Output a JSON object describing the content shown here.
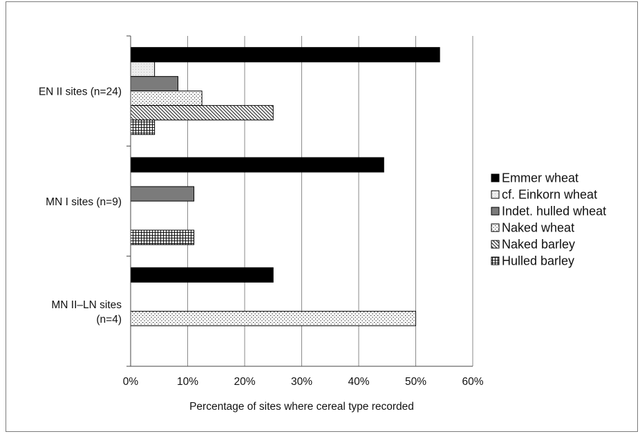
{
  "chart_data": {
    "type": "bar",
    "orientation": "horizontal",
    "categories": [
      "EN II sites (n=24)",
      "MN I sites (n=9)",
      "MN II–LN sites (n=4)"
    ],
    "category_lines": [
      [
        "EN II sites (n=24)"
      ],
      [
        "MN I sites (n=9)"
      ],
      [
        "MN II–LN sites",
        "(n=4)"
      ]
    ],
    "series": [
      {
        "name": "Emmer wheat",
        "values": [
          54.2,
          44.4,
          25.0
        ],
        "pattern": "solid"
      },
      {
        "name": "cf. Einkorn wheat",
        "values": [
          4.2,
          0,
          0
        ],
        "pattern": "light"
      },
      {
        "name": "Indet. hulled wheat",
        "values": [
          8.3,
          11.1,
          0
        ],
        "pattern": "gray"
      },
      {
        "name": "Naked wheat",
        "values": [
          12.5,
          0,
          50.0
        ],
        "pattern": "dots"
      },
      {
        "name": "Naked barley",
        "values": [
          25.0,
          0,
          0
        ],
        "pattern": "diagonal"
      },
      {
        "name": "Hulled barley",
        "values": [
          4.2,
          11.1,
          0
        ],
        "pattern": "grid"
      }
    ],
    "xlabel": "Percentage of sites where cereal type recorded",
    "ylabel": "",
    "xlim": [
      0,
      60
    ],
    "xticks": [
      "0%",
      "10%",
      "20%",
      "30%",
      "40%",
      "50%",
      "60%"
    ],
    "grid": true,
    "legend": "right"
  }
}
